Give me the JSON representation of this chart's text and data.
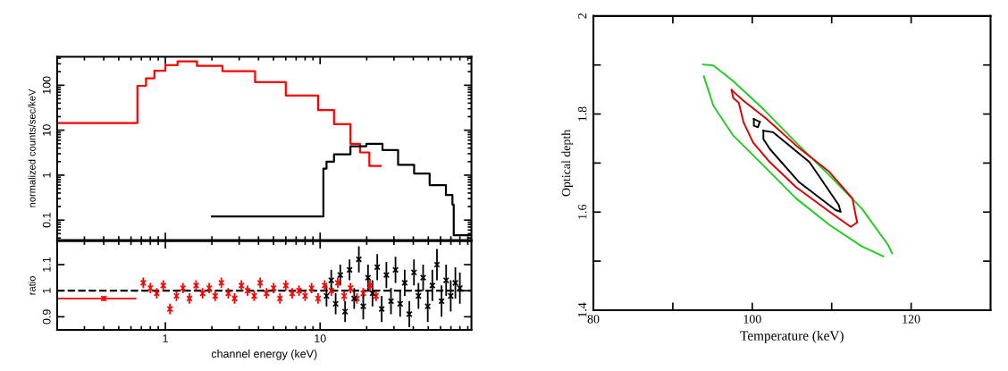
{
  "chart_data": [
    {
      "type": "step",
      "ylabel": "normalized counts/sec/keV",
      "log": "xy",
      "tick_labels": "y",
      "xlim": [
        0.2,
        95
      ],
      "ylim": [
        0.036,
        430
      ],
      "xticks": [
        1,
        10
      ],
      "yticks": [
        0.1,
        1,
        10,
        100
      ],
      "grid": false,
      "series": [
        {
          "color": "#ff0000",
          "x": [
            0.2,
            0.66,
            0.75,
            0.85,
            1.0,
            1.2,
            1.5,
            1.6,
            2.34,
            3.8,
            6.0,
            9.7,
            12.3,
            15.7,
            18.1,
            20.8,
            24.6
          ],
          "values": [
            14.5,
            97,
            143,
            210,
            280,
            340,
            340,
            270,
            205,
            117,
            59,
            28,
            13.6,
            5,
            3.2,
            1.6,
            1.6
          ]
        },
        {
          "color": "#000000",
          "x": [
            2.0,
            10.5,
            11,
            12.3,
            15.7,
            19.9,
            25.3,
            31.9,
            40.5,
            51,
            65,
            71.6,
            73,
            95
          ],
          "values": [
            0.12,
            1.4,
            2.0,
            2.9,
            4.4,
            5,
            3.6,
            1.7,
            1.08,
            0.6,
            0.36,
            0.22,
            0.046,
            0.046
          ]
        }
      ]
    },
    {
      "type": "scatter",
      "xlabel": "channel energy (keV)",
      "ylabel": "ratio",
      "log": "x",
      "marker": "cross",
      "xlim": [
        0.2,
        95
      ],
      "ylim": [
        0.85,
        1.19
      ],
      "xticks": [
        1,
        10
      ],
      "yticks": [
        0.9,
        1,
        1.1
      ],
      "grid": false,
      "ref_lines": [
        {
          "axis": "y",
          "value": 1,
          "color": "#000000",
          "line_style": "dashed"
        }
      ],
      "series": [
        {
          "color": "#ff0000",
          "x": [
            0.4,
            0.72,
            0.8,
            0.88,
            0.97,
            1.07,
            1.18,
            1.3,
            1.43,
            1.58,
            1.74,
            1.92,
            2.1,
            2.3,
            2.55,
            2.8,
            3.1,
            3.4,
            3.75,
            4.1,
            4.5,
            5.0,
            5.5,
            6.0,
            6.6,
            7.3,
            8.0,
            8.8,
            9.7,
            10.7,
            11.8,
            13,
            14.3,
            15.7,
            17.3,
            19,
            21,
            23
          ],
          "values": [
            0.97,
            1.03,
            1.01,
            0.99,
            1.02,
            0.93,
            0.98,
            1.01,
            0.97,
            1.02,
            0.99,
            1.01,
            0.98,
            1.03,
            0.99,
            0.97,
            1.02,
            1.0,
            0.98,
            1.03,
            0.99,
            1.01,
            0.97,
            1.02,
            0.99,
            1.0,
            0.98,
            1.01,
            0.97,
            1.02,
            1.0,
            1.03,
            0.98,
            1.01,
            0.97,
            0.99,
            1.02,
            0.98
          ],
          "errors": [
            0.01,
            0.02,
            0.02,
            0.02,
            0.02,
            0.02,
            0.02,
            0.02,
            0.02,
            0.02,
            0.02,
            0.02,
            0.02,
            0.02,
            0.02,
            0.02,
            0.02,
            0.02,
            0.02,
            0.02,
            0.02,
            0.02,
            0.02,
            0.02,
            0.02,
            0.02,
            0.02,
            0.02,
            0.02,
            0.02,
            0.02,
            0.02,
            0.02,
            0.02,
            0.02,
            0.02,
            0.02,
            0.02
          ],
          "xerrors": [
            [
              0.2,
              0.65
            ],
            null,
            null,
            null,
            null,
            null,
            null,
            null,
            null,
            null,
            null,
            null,
            null,
            null,
            null,
            null,
            null,
            null,
            null,
            null,
            null,
            null,
            null,
            null,
            null,
            null,
            null,
            null,
            null,
            null,
            null,
            null,
            null,
            null,
            null,
            null,
            null,
            null
          ]
        },
        {
          "color": "#000000",
          "x": [
            11,
            11.8,
            12.6,
            13.5,
            14.5,
            15.5,
            16.6,
            17.8,
            19,
            20.4,
            21.8,
            23.4,
            25,
            26.8,
            28.7,
            30.7,
            32.9,
            35.2,
            37.7,
            40.4,
            43.2,
            46.3,
            49.6,
            53.1,
            56.9,
            60.9,
            65.2,
            69.8,
            74.8,
            80
          ],
          "values": [
            0.98,
            1.04,
            0.95,
            1.06,
            0.92,
            1.08,
            0.97,
            1.12,
            0.94,
            1.05,
            0.99,
            1.09,
            0.93,
            1.06,
            0.96,
            1.08,
            0.95,
            1.03,
            0.91,
            1.07,
            0.98,
            1.05,
            0.94,
            1.02,
            1.1,
            0.96,
            1.04,
            0.98,
            1.03,
            1.01
          ],
          "errors": [
            0.04,
            0.04,
            0.04,
            0.04,
            0.04,
            0.04,
            0.04,
            0.05,
            0.05,
            0.05,
            0.05,
            0.05,
            0.05,
            0.05,
            0.05,
            0.05,
            0.05,
            0.05,
            0.05,
            0.05,
            0.05,
            0.05,
            0.06,
            0.06,
            0.06,
            0.06,
            0.06,
            0.06,
            0.06,
            0.06
          ]
        }
      ]
    },
    {
      "type": "line",
      "xlabel": "Temperature (keV)",
      "ylabel": "Optical depth",
      "xlim": [
        80,
        130
      ],
      "ylim": [
        1.4,
        2
      ],
      "xticks": [
        80,
        {
          "value": 90,
          "label": null
        },
        100,
        {
          "value": 110,
          "label": null
        },
        120
      ],
      "yticks": [
        1.4,
        {
          "value": 1.5,
          "label": null
        },
        1.6,
        {
          "value": 1.7,
          "label": null
        },
        1.8,
        {
          "value": 1.9,
          "label": null
        },
        2
      ],
      "grid": false,
      "series": [
        {
          "color": "#22cc22",
          "x": [
            93.8,
            95.1,
            97.6,
            101.4,
            105.5,
            109.7,
            113.8,
            117.1,
            117.6
          ],
          "values": [
            1.901,
            1.899,
            1.867,
            1.81,
            1.742,
            1.675,
            1.607,
            1.533,
            1.516
          ]
        },
        {
          "color": "#22cc22",
          "x": [
            93.9,
            95.1,
            97.6,
            101.4,
            105.5,
            109.7,
            113.8,
            116.5
          ],
          "values": [
            1.877,
            1.817,
            1.756,
            1.695,
            1.628,
            1.574,
            1.53,
            1.51
          ]
        },
        {
          "color": "#dd0000",
          "x": [
            97.4,
            98.0,
            98.9,
            101.8,
            105.5,
            109.7,
            112.6,
            113.2
          ],
          "values": [
            1.849,
            1.84,
            1.827,
            1.79,
            1.736,
            1.682,
            1.628,
            1.579
          ]
        },
        {
          "color": "#dd0000",
          "x": [
            97.4,
            97.6,
            98.3,
            98.9,
            100.1,
            102.2,
            105.5,
            109.7,
            112.4,
            113.2
          ],
          "values": [
            1.849,
            1.833,
            1.823,
            1.783,
            1.742,
            1.702,
            1.651,
            1.601,
            1.57,
            1.579
          ]
        },
        {
          "color": "#000000",
          "x": [
            101.4,
            102.6,
            107.2,
            110.9,
            111.1
          ],
          "values": [
            1.766,
            1.763,
            1.702,
            1.614,
            1.601
          ]
        },
        {
          "color": "#000000",
          "x": [
            101.4,
            101.4,
            102.2,
            105.9,
            110.5,
            111.1
          ],
          "values": [
            1.766,
            1.749,
            1.729,
            1.661,
            1.604,
            1.601
          ]
        },
        {
          "color": "#000000",
          "x": [
            100.2,
            100.95
          ],
          "values": [
            1.79,
            1.784
          ]
        },
        {
          "color": "#000000",
          "x": [
            100.2,
            100.2,
            100.7,
            100.95
          ],
          "values": [
            1.79,
            1.776,
            1.773,
            1.784
          ]
        }
      ]
    }
  ]
}
